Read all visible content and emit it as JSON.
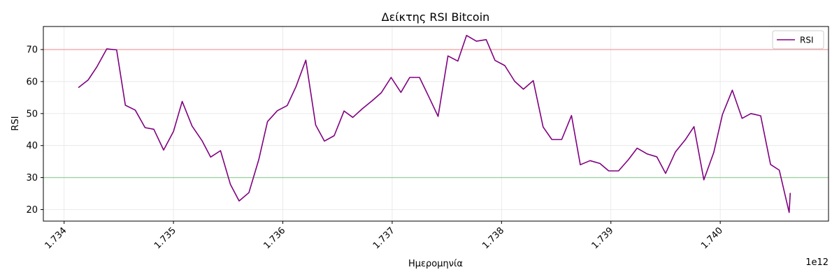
{
  "chart_data": {
    "type": "line",
    "title": "Δείκτης RSI Bitcoin",
    "xlabel": "Ημερομηνία",
    "ylabel": "RSI",
    "x_offset_label": "1e12",
    "xlim": [
      1.73381,
      1.74099
    ],
    "ylim": [
      16.4,
      77.2
    ],
    "x_ticks": [
      1.734,
      1.735,
      1.736,
      1.737,
      1.738,
      1.739,
      1.74
    ],
    "x_tick_labels": [
      "1.734",
      "1.735",
      "1.736",
      "1.737",
      "1.738",
      "1.739",
      "1.740"
    ],
    "y_ticks": [
      20,
      30,
      40,
      50,
      60,
      70
    ],
    "y_tick_labels": [
      "20",
      "30",
      "40",
      "50",
      "60",
      "70"
    ],
    "grid": true,
    "legend_position": "top-right",
    "reference_lines": [
      {
        "y": 70,
        "color": "#f4a6a6"
      },
      {
        "y": 30,
        "color": "#9fd29f"
      }
    ],
    "series": [
      {
        "name": "RSI",
        "color": "#800080",
        "x": [
          1.73413,
          1.73422,
          1.7343,
          1.73439,
          1.73448,
          1.73456,
          1.73465,
          1.73474,
          1.73482,
          1.73491,
          1.735,
          1.73508,
          1.73517,
          1.73526,
          1.73534,
          1.73543,
          1.73552,
          1.7356,
          1.73569,
          1.73578,
          1.73586,
          1.73595,
          1.73604,
          1.73612,
          1.73621,
          1.7363,
          1.73638,
          1.73647,
          1.73656,
          1.73664,
          1.73673,
          1.73682,
          1.7369,
          1.73699,
          1.73708,
          1.73716,
          1.73725,
          1.73734,
          1.73742,
          1.73751,
          1.7376,
          1.73768,
          1.73777,
          1.73786,
          1.73794,
          1.73803,
          1.73812,
          1.7382,
          1.73829,
          1.73838,
          1.73846,
          1.73855,
          1.73864,
          1.73872,
          1.73881,
          1.7389,
          1.73898,
          1.73907,
          1.73916,
          1.73924,
          1.73933,
          1.73942,
          1.7395,
          1.73959,
          1.73968,
          1.73976,
          1.73985,
          1.73994,
          1.74002,
          1.74011,
          1.7402,
          1.74028,
          1.74037,
          1.74046,
          1.74054,
          1.74063,
          1.74064
        ],
        "y": [
          58.1,
          60.5,
          64.6,
          70.2,
          69.9,
          52.6,
          51.1,
          45.6,
          45.1,
          38.6,
          44.4,
          53.8,
          46.1,
          41.6,
          36.4,
          38.4,
          27.9,
          22.7,
          25.3,
          35.6,
          47.5,
          50.9,
          52.5,
          58.4,
          66.7,
          46.4,
          41.4,
          43.1,
          50.8,
          48.8,
          51.6,
          54.1,
          56.5,
          61.3,
          56.6,
          61.3,
          61.3,
          54.9,
          49.1,
          68.0,
          66.4,
          74.4,
          72.6,
          73.1,
          66.6,
          65.0,
          60.1,
          57.6,
          60.3,
          45.8,
          41.9,
          41.9,
          49.4,
          34.0,
          35.3,
          34.4,
          32.1,
          32.1,
          35.6,
          39.2,
          37.4,
          36.5,
          31.3,
          38.0,
          41.8,
          45.9,
          29.3,
          37.8,
          49.7,
          57.3,
          48.5,
          50.0,
          49.3,
          34.1,
          32.3,
          19.1,
          25.2
        ]
      }
    ]
  }
}
